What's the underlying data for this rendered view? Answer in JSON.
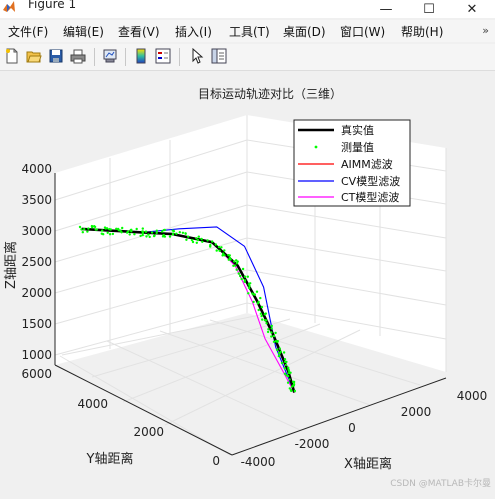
{
  "window": {
    "title": "Figure 1",
    "minimize": "—",
    "maximize": "☐",
    "close": "✕"
  },
  "menu": {
    "items": [
      "文件(F)",
      "编辑(E)",
      "查看(V)",
      "插入(I)",
      "工具(T)",
      "桌面(D)",
      "窗口(W)",
      "帮助(H)"
    ],
    "overflow_icon": "double-chevron-right-icon"
  },
  "toolbar": {
    "buttons": [
      "new-figure-icon",
      "open-file-icon",
      "save-icon",
      "print-icon",
      "link-plot-icon",
      "insert-colorbar-icon",
      "insert-legend-icon",
      "edit-plot-icon",
      "property-inspector-icon"
    ]
  },
  "watermark": "CSDN @MATLAB卡尔曼",
  "chart_data": {
    "type": "line",
    "title": "目标运动轨迹对比（三维）",
    "xlabel": "X轴距离",
    "ylabel": "Y轴距离",
    "zlabel": "Z轴距离",
    "xticks": [
      "-4000",
      "-2000",
      "0",
      "2000",
      "4000"
    ],
    "yticks": [
      "0",
      "2000",
      "4000",
      "6000"
    ],
    "zticks": [
      "1000",
      "1500",
      "2000",
      "2500",
      "3000",
      "3500",
      "4000"
    ],
    "xlim": [
      -5000,
      5000
    ],
    "ylim": [
      0,
      6000
    ],
    "zlim": [
      1000,
      4000
    ],
    "grid": true,
    "legend": {
      "position": "top-right",
      "entries": [
        {
          "label": "真实值",
          "color": "#000000",
          "style": "thick-line"
        },
        {
          "label": "测量值",
          "color": "#00ff00",
          "style": "dot"
        },
        {
          "label": "AIMM滤波",
          "color": "#ff0000",
          "style": "line"
        },
        {
          "label": "CV模型滤波",
          "color": "#0000ff",
          "style": "line"
        },
        {
          "label": "CT模型滤波",
          "color": "#ff00ff",
          "style": "line"
        }
      ]
    },
    "series": [
      {
        "name": "真实值",
        "color": "#000000",
        "x": [
          -4500,
          -3500,
          -2500,
          -1500,
          -500,
          0,
          200,
          300,
          300,
          300
        ],
        "y": [
          5800,
          5500,
          5200,
          4900,
          4300,
          3800,
          3300,
          2800,
          2300,
          2100
        ],
        "z": [
          3800,
          3700,
          3600,
          3500,
          3350,
          3000,
          2500,
          2000,
          1500,
          1200
        ]
      },
      {
        "name": "AIMM滤波",
        "color": "#ff0000",
        "x": [
          -4500,
          -3500,
          -2500,
          -1500,
          -500,
          0,
          200,
          300,
          300,
          300
        ],
        "y": [
          5800,
          5500,
          5200,
          4900,
          4300,
          3800,
          3300,
          2800,
          2300,
          2100
        ],
        "z": [
          3800,
          3700,
          3600,
          3500,
          3350,
          3000,
          2500,
          2000,
          1500,
          1200
        ]
      },
      {
        "name": "CV模型滤波",
        "color": "#0000ff",
        "x": [
          -4500,
          -3500,
          -2500,
          -1200,
          0,
          600,
          800,
          400,
          300
        ],
        "y": [
          5800,
          5500,
          5200,
          4900,
          4500,
          4000,
          3500,
          2800,
          2100
        ],
        "z": [
          3800,
          3700,
          3600,
          3550,
          3500,
          3200,
          2600,
          1800,
          1200
        ]
      },
      {
        "name": "CT模型滤波",
        "color": "#ff00ff",
        "x": [
          -4500,
          -3500,
          -2500,
          -1500,
          -500,
          -100,
          0,
          -100,
          100,
          300
        ],
        "y": [
          5800,
          5500,
          5200,
          4900,
          4300,
          3800,
          3300,
          2800,
          2300,
          2100
        ],
        "z": [
          3800,
          3700,
          3600,
          3500,
          3350,
          3000,
          2500,
          2000,
          1500,
          1200
        ]
      }
    ]
  }
}
